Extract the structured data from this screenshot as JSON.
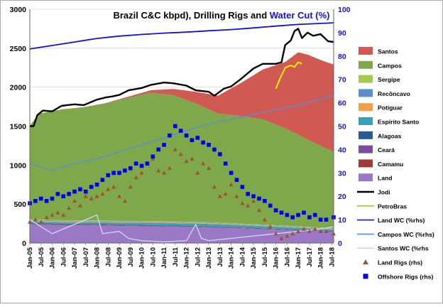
{
  "chart_data": {
    "type": "area",
    "title_parts": [
      {
        "text": "Brazil C&C kbpd), Drilling Rigs and ",
        "color": "#000000"
      },
      {
        "text": "Water Cut (%)",
        "color": "#1010e0"
      }
    ],
    "y_left": {
      "min": 0,
      "max": 3000,
      "ticks": [
        "0",
        "500",
        "1000",
        "1500",
        "2000",
        "2500",
        "3000"
      ]
    },
    "y_right": {
      "min": 0,
      "max": 100,
      "ticks": [
        "0",
        "10",
        "20",
        "30",
        "40",
        "50",
        "60",
        "70",
        "80",
        "90",
        "100"
      ]
    },
    "x_start": "2005-01",
    "x_end": "2018-08",
    "x_tick_labels": [
      "Jan-05",
      "Jul-05",
      "Jan-06",
      "Jul-06",
      "Jan-07",
      "Jul-07",
      "Jan-08",
      "Jul-08",
      "Jan-09",
      "Jul-09",
      "Jan-10",
      "Jul-10",
      "Jan-11",
      "Jul-11",
      "Jan-12",
      "Jul-12",
      "Jan-13",
      "Jul-13",
      "Jan-14",
      "Jul-14",
      "Jan-15",
      "Jul-15",
      "Jan-16",
      "Jul-16",
      "Jan-17",
      "Jul-17",
      "Jan-18",
      "Jul-18"
    ],
    "stack_series": [
      {
        "name": "Land",
        "color": "#9b78c6",
        "points": [
          [
            "2005-01",
            240
          ],
          [
            "2006-01",
            230
          ],
          [
            "2008-01",
            225
          ],
          [
            "2010-01",
            215
          ],
          [
            "2012-01",
            205
          ],
          [
            "2014-01",
            190
          ],
          [
            "2016-01",
            170
          ],
          [
            "2018-08",
            140
          ]
        ]
      },
      {
        "name": "Camamu",
        "color": "#a03a3a",
        "points": [
          [
            "2005-01",
            4
          ],
          [
            "2018-08",
            3
          ]
        ]
      },
      {
        "name": "Ceará",
        "color": "#7a4e9c",
        "points": [
          [
            "2005-01",
            8
          ],
          [
            "2018-08",
            5
          ]
        ]
      },
      {
        "name": "Alagoas",
        "color": "#2a5a94",
        "points": [
          [
            "2005-01",
            8
          ],
          [
            "2018-08",
            5
          ]
        ]
      },
      {
        "name": "Espírito Santo",
        "color": "#3aa0b8",
        "points": [
          [
            "2005-01",
            20
          ],
          [
            "2007-01",
            20
          ],
          [
            "2009-01",
            25
          ],
          [
            "2011-01",
            30
          ],
          [
            "2013-01",
            32
          ],
          [
            "2015-01",
            28
          ],
          [
            "2017-01",
            24
          ],
          [
            "2018-08",
            20
          ]
        ]
      },
      {
        "name": "Potiguar",
        "color": "#f2a14a",
        "points": [
          [
            "2005-01",
            12
          ],
          [
            "2018-08",
            8
          ]
        ]
      },
      {
        "name": "Recôncavo",
        "color": "#5a8ed0",
        "points": [
          [
            "2005-01",
            8
          ],
          [
            "2018-08",
            5
          ]
        ]
      },
      {
        "name": "Sergipe",
        "color": "#a4c94b",
        "points": [
          [
            "2005-01",
            6
          ],
          [
            "2018-08",
            4
          ]
        ]
      },
      {
        "name": "Campos",
        "color": "#7ea84a",
        "points": [
          [
            "2005-01",
            1200
          ],
          [
            "2005-06",
            1360
          ],
          [
            "2006-06",
            1420
          ],
          [
            "2007-06",
            1450
          ],
          [
            "2008-06",
            1500
          ],
          [
            "2009-06",
            1580
          ],
          [
            "2010-06",
            1650
          ],
          [
            "2011-06",
            1620
          ],
          [
            "2012-06",
            1520
          ],
          [
            "2013-06",
            1400
          ],
          [
            "2014-06",
            1380
          ],
          [
            "2015-06",
            1350
          ],
          [
            "2016-06",
            1250
          ],
          [
            "2017-06",
            1120
          ],
          [
            "2018-08",
            980
          ]
        ]
      },
      {
        "name": "Santos",
        "color": "#d05a52",
        "points": [
          [
            "2005-01",
            0
          ],
          [
            "2008-01",
            5
          ],
          [
            "2009-06",
            15
          ],
          [
            "2010-06",
            30
          ],
          [
            "2011-06",
            80
          ],
          [
            "2012-06",
            150
          ],
          [
            "2013-06",
            230
          ],
          [
            "2014-06",
            420
          ],
          [
            "2015-06",
            640
          ],
          [
            "2016-06",
            850
          ],
          [
            "2017-01",
            1060
          ],
          [
            "2017-06",
            1090
          ],
          [
            "2018-01",
            1100
          ],
          [
            "2018-08",
            1120
          ]
        ]
      }
    ],
    "jodi": {
      "name": "Jodi",
      "color": "#000000",
      "points": [
        [
          "2005-01",
          1500
        ],
        [
          "2005-03",
          1500
        ],
        [
          "2005-05",
          1640
        ],
        [
          "2005-08",
          1700
        ],
        [
          "2006-01",
          1690
        ],
        [
          "2006-06",
          1760
        ],
        [
          "2006-09",
          1770
        ],
        [
          "2007-01",
          1780
        ],
        [
          "2007-06",
          1770
        ],
        [
          "2008-01",
          1840
        ],
        [
          "2008-06",
          1870
        ],
        [
          "2008-09",
          1880
        ],
        [
          "2009-01",
          1900
        ],
        [
          "2009-06",
          1960
        ],
        [
          "2010-01",
          1990
        ],
        [
          "2010-06",
          2030
        ],
        [
          "2011-01",
          2060
        ],
        [
          "2011-06",
          2050
        ],
        [
          "2012-01",
          2020
        ],
        [
          "2012-06",
          1960
        ],
        [
          "2013-01",
          1940
        ],
        [
          "2013-04",
          1890
        ],
        [
          "2013-09",
          1980
        ],
        [
          "2014-01",
          2010
        ],
        [
          "2014-06",
          2100
        ],
        [
          "2015-01",
          2240
        ],
        [
          "2015-06",
          2300
        ],
        [
          "2016-01",
          2300
        ],
        [
          "2016-04",
          2320
        ],
        [
          "2016-06",
          2540
        ],
        [
          "2016-09",
          2600
        ],
        [
          "2016-11",
          2720
        ],
        [
          "2017-01",
          2750
        ],
        [
          "2017-03",
          2630
        ],
        [
          "2017-06",
          2700
        ],
        [
          "2017-09",
          2660
        ],
        [
          "2018-01",
          2680
        ],
        [
          "2018-05",
          2590
        ],
        [
          "2018-08",
          2580
        ]
      ]
    },
    "petrobras": {
      "name": "PetroBras",
      "color": "#f0f000",
      "points": [
        [
          "2016-01",
          1980
        ],
        [
          "2016-03",
          2100
        ],
        [
          "2016-06",
          2250
        ],
        [
          "2016-09",
          2280
        ],
        [
          "2016-11",
          2260
        ],
        [
          "2017-01",
          2320
        ],
        [
          "2017-03",
          2300
        ]
      ]
    },
    "right_axis_lines": [
      {
        "name": "Land WC (%rhs)",
        "color": "#1010e0",
        "points": [
          [
            "2005-01",
            83
          ],
          [
            "2006-01",
            84.5
          ],
          [
            "2007-01",
            86
          ],
          [
            "2008-01",
            87.5
          ],
          [
            "2009-01",
            88.5
          ],
          [
            "2010-01",
            89.2
          ],
          [
            "2011-01",
            89.8
          ],
          [
            "2012-01",
            90.2
          ],
          [
            "2013-01",
            90.8
          ],
          [
            "2014-01",
            91.3
          ],
          [
            "2015-01",
            92
          ],
          [
            "2016-01",
            92.8
          ],
          [
            "2017-01",
            93.5
          ],
          [
            "2018-08",
            94.2
          ]
        ]
      },
      {
        "name": "Campos WC (%rhs)",
        "color": "#5a8ed0",
        "points": [
          [
            "2005-01",
            34
          ],
          [
            "2006-01",
            31
          ],
          [
            "2007-01",
            34
          ],
          [
            "2008-01",
            36
          ],
          [
            "2009-01",
            39
          ],
          [
            "2010-01",
            42
          ],
          [
            "2011-01",
            45
          ],
          [
            "2012-01",
            48
          ],
          [
            "2013-01",
            51
          ],
          [
            "2014-01",
            53
          ],
          [
            "2015-01",
            55
          ],
          [
            "2016-01",
            57
          ],
          [
            "2017-01",
            59
          ],
          [
            "2018-08",
            63
          ]
        ]
      },
      {
        "name": "Santos WC (%rhs",
        "color": "#c9d6f0",
        "points": [
          [
            "2005-01",
            10
          ],
          [
            "2006-01",
            4
          ],
          [
            "2007-01",
            8
          ],
          [
            "2008-01",
            12
          ],
          [
            "2008-04",
            4
          ],
          [
            "2009-01",
            5
          ],
          [
            "2009-06",
            2
          ],
          [
            "2010-01",
            1
          ],
          [
            "2011-01",
            0.5
          ],
          [
            "2012-01",
            1
          ],
          [
            "2012-06",
            8
          ],
          [
            "2012-09",
            2
          ],
          [
            "2013-01",
            1
          ],
          [
            "2014-01",
            2
          ],
          [
            "2015-01",
            3
          ],
          [
            "2016-01",
            4
          ],
          [
            "2017-01",
            5
          ],
          [
            "2018-01",
            6
          ],
          [
            "2018-08",
            7
          ]
        ]
      }
    ],
    "land_rigs": {
      "name": "Land Rigs (rhs)",
      "color": "#a0522d",
      "points": [
        [
          "2005-01",
          9
        ],
        [
          "2005-04",
          10
        ],
        [
          "2005-07",
          9
        ],
        [
          "2005-10",
          11
        ],
        [
          "2006-01",
          12
        ],
        [
          "2006-04",
          13
        ],
        [
          "2006-07",
          12
        ],
        [
          "2006-10",
          15
        ],
        [
          "2007-01",
          18
        ],
        [
          "2007-04",
          16
        ],
        [
          "2007-07",
          20
        ],
        [
          "2007-10",
          19
        ],
        [
          "2008-01",
          20
        ],
        [
          "2008-04",
          21
        ],
        [
          "2008-07",
          23
        ],
        [
          "2008-10",
          24
        ],
        [
          "2009-01",
          20
        ],
        [
          "2009-04",
          18
        ],
        [
          "2009-07",
          24
        ],
        [
          "2009-10",
          28
        ],
        [
          "2010-01",
          30
        ],
        [
          "2010-04",
          34
        ],
        [
          "2010-07",
          36
        ],
        [
          "2010-10",
          31
        ],
        [
          "2011-01",
          30
        ],
        [
          "2011-04",
          32
        ],
        [
          "2011-07",
          40
        ],
        [
          "2011-10",
          38
        ],
        [
          "2012-01",
          35
        ],
        [
          "2012-04",
          36
        ],
        [
          "2012-07",
          30
        ],
        [
          "2012-10",
          34
        ],
        [
          "2013-01",
          32
        ],
        [
          "2013-04",
          24
        ],
        [
          "2013-07",
          20
        ],
        [
          "2013-10",
          21
        ],
        [
          "2014-01",
          25
        ],
        [
          "2014-04",
          20
        ],
        [
          "2014-07",
          17
        ],
        [
          "2014-10",
          16
        ],
        [
          "2015-01",
          18
        ],
        [
          "2015-04",
          14
        ],
        [
          "2015-07",
          10
        ],
        [
          "2015-10",
          7
        ],
        [
          "2016-01",
          4
        ],
        [
          "2016-04",
          2
        ],
        [
          "2016-07",
          3
        ],
        [
          "2016-10",
          4
        ],
        [
          "2017-01",
          5
        ],
        [
          "2017-04",
          6
        ],
        [
          "2017-07",
          5
        ],
        [
          "2017-10",
          6
        ],
        [
          "2018-01",
          5
        ],
        [
          "2018-04",
          5
        ],
        [
          "2018-08",
          4
        ]
      ]
    },
    "offshore_rigs": {
      "name": "Offshore Rigs (rhs)",
      "color": "#0000ee",
      "points": [
        [
          "2005-01",
          17
        ],
        [
          "2005-04",
          18
        ],
        [
          "2005-07",
          19
        ],
        [
          "2005-10",
          18
        ],
        [
          "2006-01",
          19
        ],
        [
          "2006-04",
          21
        ],
        [
          "2006-07",
          20
        ],
        [
          "2006-10",
          21
        ],
        [
          "2007-01",
          22
        ],
        [
          "2007-04",
          23
        ],
        [
          "2007-07",
          22
        ],
        [
          "2007-10",
          24
        ],
        [
          "2008-01",
          25
        ],
        [
          "2008-04",
          27
        ],
        [
          "2008-07",
          29
        ],
        [
          "2008-10",
          30
        ],
        [
          "2009-01",
          30
        ],
        [
          "2009-04",
          31
        ],
        [
          "2009-07",
          32
        ],
        [
          "2009-10",
          34
        ],
        [
          "2010-01",
          33
        ],
        [
          "2010-04",
          34
        ],
        [
          "2010-07",
          37
        ],
        [
          "2010-10",
          40
        ],
        [
          "2011-01",
          42
        ],
        [
          "2011-04",
          46
        ],
        [
          "2011-07",
          50
        ],
        [
          "2011-10",
          48
        ],
        [
          "2012-01",
          46
        ],
        [
          "2012-04",
          44
        ],
        [
          "2012-07",
          45
        ],
        [
          "2012-10",
          43
        ],
        [
          "2013-01",
          42
        ],
        [
          "2013-04",
          40
        ],
        [
          "2013-07",
          38
        ],
        [
          "2013-10",
          34
        ],
        [
          "2014-01",
          30
        ],
        [
          "2014-04",
          27
        ],
        [
          "2014-07",
          24
        ],
        [
          "2014-10",
          21
        ],
        [
          "2015-01",
          20
        ],
        [
          "2015-04",
          19
        ],
        [
          "2015-07",
          18
        ],
        [
          "2015-10",
          16
        ],
        [
          "2016-01",
          14
        ],
        [
          "2016-04",
          13
        ],
        [
          "2016-07",
          12
        ],
        [
          "2016-10",
          11
        ],
        [
          "2017-01",
          12
        ],
        [
          "2017-04",
          13
        ],
        [
          "2017-07",
          11
        ],
        [
          "2017-10",
          12
        ],
        [
          "2018-01",
          10
        ],
        [
          "2018-04",
          10
        ],
        [
          "2018-08",
          11
        ]
      ]
    },
    "legend_order": [
      "Santos",
      "Campos",
      "Sergipe",
      "Recôncavo",
      "Potiguar",
      "Espírito Santo",
      "Alagoas",
      "Ceará",
      "Camamu",
      "Land",
      "Jodi",
      "PetroBras",
      "Land WC (%rhs)",
      "Campos WC (%rhs)",
      "Santos WC (%rhs",
      "Land Rigs (rhs)",
      "Offshore Rigs (rhs)"
    ],
    "legend_placement": "right",
    "grid": true
  }
}
